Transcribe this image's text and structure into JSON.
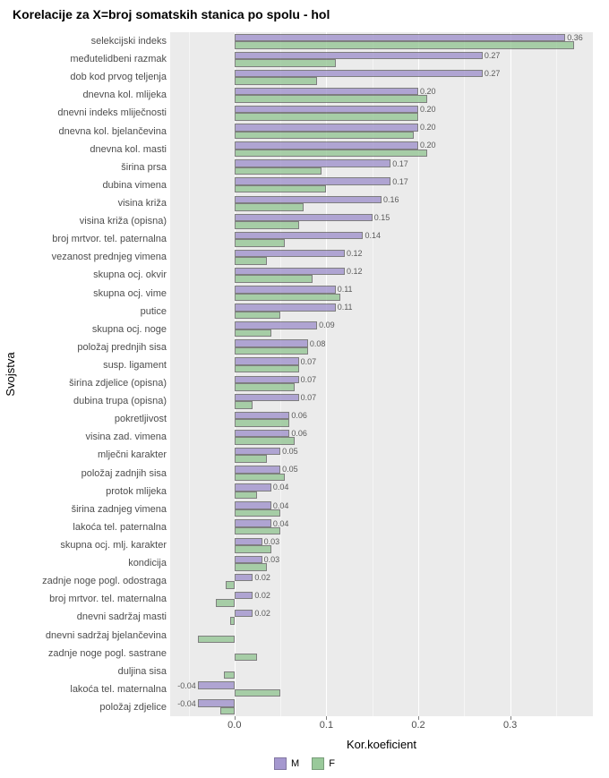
{
  "chart": {
    "type": "grouped-horizontal-bar",
    "title": "Korelacije za X=broj somatskih stanica po spolu - hol",
    "y_axis_label": "Svojstva",
    "x_axis_label": "Kor.koeficient",
    "background_color": "#ffffff",
    "panel_background": "#ebebeb",
    "grid_color": "#ffffff",
    "xlim": [
      -0.07,
      0.39
    ],
    "xticks": [
      0.0,
      0.1,
      0.2,
      0.3
    ],
    "xtick_labels": [
      "0.0",
      "0.1",
      "0.2",
      "0.3"
    ],
    "legend": {
      "items": [
        {
          "key": "M",
          "label": "M",
          "color": "#9c8dca"
        },
        {
          "key": "F",
          "label": "F",
          "color": "#8fc490"
        }
      ]
    },
    "colors": {
      "M": "#9c8dca",
      "F": "#8fc490"
    },
    "bar_border_color": "#5a5a5a",
    "label_fontsize": 11,
    "title_fontsize": 14,
    "value_fontsize": 9,
    "data": [
      {
        "label": "selekcijski indeks",
        "M": 0.36,
        "F": 0.37,
        "show": 0.36
      },
      {
        "label": "međutelidbeni razmak",
        "M": 0.27,
        "F": 0.11,
        "show": 0.27
      },
      {
        "label": "dob kod prvog teljenja",
        "M": 0.27,
        "F": 0.09,
        "show": 0.27
      },
      {
        "label": "dnevna kol. mlijeka",
        "M": 0.2,
        "F": 0.21,
        "show": 0.2
      },
      {
        "label": "dnevni indeks mliječnosti",
        "M": 0.2,
        "F": 0.2,
        "show": 0.2
      },
      {
        "label": "dnevna kol. bjelančevina",
        "M": 0.2,
        "F": 0.195,
        "show": 0.2
      },
      {
        "label": "dnevna kol. masti",
        "M": 0.2,
        "F": 0.21,
        "show": 0.2
      },
      {
        "label": "širina prsa",
        "M": 0.17,
        "F": 0.095,
        "show": 0.17
      },
      {
        "label": "dubina vimena",
        "M": 0.17,
        "F": 0.1,
        "show": 0.17
      },
      {
        "label": "visina križa",
        "M": 0.16,
        "F": 0.075,
        "show": 0.16
      },
      {
        "label": "visina križa (opisna)",
        "M": 0.15,
        "F": 0.07,
        "show": 0.15
      },
      {
        "label": "broj mrtvor. tel. paternalna",
        "M": 0.14,
        "F": 0.055,
        "show": 0.14
      },
      {
        "label": "vezanost prednjeg vimena",
        "M": 0.12,
        "F": 0.035,
        "show": 0.12
      },
      {
        "label": "skupna ocj. okvir",
        "M": 0.12,
        "F": 0.085,
        "show": 0.12
      },
      {
        "label": "skupna ocj. vime",
        "M": 0.11,
        "F": 0.115,
        "show": 0.11
      },
      {
        "label": "putice",
        "M": 0.11,
        "F": 0.05,
        "show": 0.11
      },
      {
        "label": "skupna ocj. noge",
        "M": 0.09,
        "F": 0.04,
        "show": 0.09
      },
      {
        "label": "položaj prednjih sisa",
        "M": 0.08,
        "F": 0.08,
        "show": 0.08
      },
      {
        "label": "susp. ligament",
        "M": 0.07,
        "F": 0.07,
        "show": 0.07
      },
      {
        "label": "širina zdjelice (opisna)",
        "M": 0.07,
        "F": 0.065,
        "show": 0.07
      },
      {
        "label": "dubina trupa (opisna)",
        "M": 0.07,
        "F": 0.02,
        "show": 0.07
      },
      {
        "label": "pokretljivost",
        "M": 0.06,
        "F": 0.06,
        "show": 0.06
      },
      {
        "label": "visina zad. vimena",
        "M": 0.06,
        "F": 0.065,
        "show": 0.06
      },
      {
        "label": "mlječni karakter",
        "M": 0.05,
        "F": 0.035,
        "show": 0.05
      },
      {
        "label": "položaj zadnjih sisa",
        "M": 0.05,
        "F": 0.055,
        "show": 0.05
      },
      {
        "label": "protok mlijeka",
        "M": 0.04,
        "F": 0.025,
        "show": 0.04
      },
      {
        "label": "širina zadnjeg vimena",
        "M": 0.04,
        "F": 0.05,
        "show": 0.04
      },
      {
        "label": "lakoća tel. paternalna",
        "M": 0.04,
        "F": 0.05,
        "show": 0.04
      },
      {
        "label": "skupna ocj. mlj. karakter",
        "M": 0.03,
        "F": 0.04,
        "show": 0.03
      },
      {
        "label": "kondicija",
        "M": 0.03,
        "F": 0.035,
        "show": 0.03
      },
      {
        "label": "zadnje noge pogl. odostraga",
        "M": 0.02,
        "F": -0.01,
        "show": 0.02
      },
      {
        "label": "broj mrtvor. tel. maternalna",
        "M": 0.02,
        "F": -0.02,
        "show": 0.02
      },
      {
        "label": "dnevni sadržaj masti",
        "M": 0.02,
        "F": -0.005,
        "show": 0.02
      },
      {
        "label": "dnevni sadržaj bjelančevina",
        "M": null,
        "F": -0.04,
        "show": null
      },
      {
        "label": "zadnje noge pogl. sastrane",
        "M": null,
        "F": 0.025,
        "show": null
      },
      {
        "label": "duljina sisa",
        "M": null,
        "F": -0.012,
        "show": null
      },
      {
        "label": "lakoća tel. maternalna",
        "M": -0.04,
        "F": 0.05,
        "show": -0.04
      },
      {
        "label": "položaj zdjelice",
        "M": -0.04,
        "F": -0.015,
        "show": -0.04
      }
    ]
  }
}
